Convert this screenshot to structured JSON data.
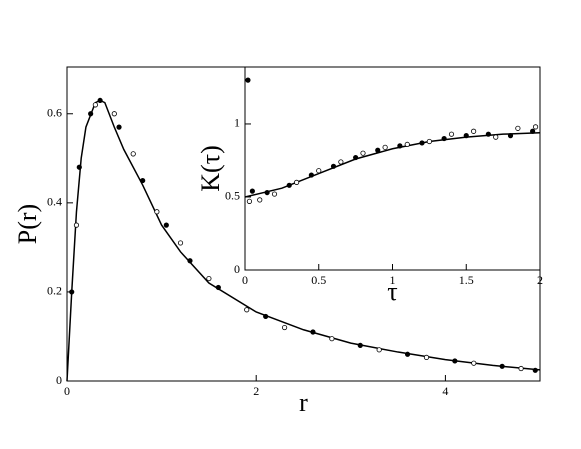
{
  "chart_data": [
    {
      "type": "line",
      "xlabel": "r",
      "ylabel": "P(r)",
      "xlim": [
        0,
        5
      ],
      "ylim": [
        0,
        0.705
      ],
      "xticks": [
        0,
        2,
        4
      ],
      "yticks": [
        0,
        0.2,
        0.4,
        0.6
      ],
      "series": [
        {
          "marker": "none",
          "color": "#000000",
          "x": [
            0,
            0.05,
            0.1,
            0.15,
            0.2,
            0.3,
            0.35,
            0.4,
            0.5,
            0.6,
            0.8,
            1,
            1.2,
            1.5,
            2,
            2.5,
            3,
            3.5,
            4,
            4.5,
            5
          ],
          "values": [
            0,
            0.2,
            0.38,
            0.5,
            0.57,
            0.625,
            0.63,
            0.625,
            0.57,
            0.52,
            0.44,
            0.35,
            0.29,
            0.22,
            0.155,
            0.115,
            0.085,
            0.065,
            0.048,
            0.035,
            0.025
          ]
        },
        {
          "marker": "filled",
          "color": "#000000",
          "x": [
            0.05,
            0.13,
            0.25,
            0.35,
            0.55,
            0.8,
            1.05,
            1.3,
            1.6,
            2.1,
            2.6,
            3.1,
            3.6,
            4.1,
            4.6,
            4.95
          ],
          "values": [
            0.2,
            0.48,
            0.6,
            0.63,
            0.57,
            0.45,
            0.35,
            0.27,
            0.21,
            0.145,
            0.11,
            0.08,
            0.06,
            0.045,
            0.033,
            0.024
          ]
        },
        {
          "marker": "open",
          "color": "#000000",
          "x": [
            0.1,
            0.3,
            0.5,
            0.7,
            0.95,
            1.2,
            1.5,
            1.9,
            2.3,
            2.8,
            3.3,
            3.8,
            4.3,
            4.8
          ],
          "values": [
            0.35,
            0.62,
            0.6,
            0.51,
            0.38,
            0.31,
            0.23,
            0.16,
            0.12,
            0.095,
            0.07,
            0.053,
            0.04,
            0.028
          ]
        }
      ]
    },
    {
      "type": "line",
      "xlabel": "τ",
      "ylabel": "K(τ)",
      "xlim": [
        0,
        2
      ],
      "ylim": [
        0,
        1.39
      ],
      "xticks": [
        0,
        0.5,
        1,
        1.5,
        2
      ],
      "yticks": [
        0,
        0.5,
        1
      ],
      "series": [
        {
          "marker": "none",
          "color": "#000000",
          "x": [
            0,
            0.25,
            0.5,
            0.75,
            1,
            1.25,
            1.5,
            1.75,
            2
          ],
          "values": [
            0.5,
            0.56,
            0.66,
            0.76,
            0.83,
            0.88,
            0.91,
            0.93,
            0.94
          ]
        },
        {
          "marker": "filled",
          "color": "#000000",
          "x": [
            0.02,
            0.05,
            0.15,
            0.3,
            0.45,
            0.6,
            0.75,
            0.9,
            1.05,
            1.2,
            1.35,
            1.5,
            1.65,
            1.8,
            1.95
          ],
          "values": [
            1.3,
            0.54,
            0.53,
            0.58,
            0.65,
            0.71,
            0.77,
            0.82,
            0.85,
            0.87,
            0.9,
            0.92,
            0.93,
            0.92,
            0.95
          ]
        },
        {
          "marker": "open",
          "color": "#000000",
          "x": [
            0.03,
            0.1,
            0.2,
            0.35,
            0.5,
            0.65,
            0.8,
            0.95,
            1.1,
            1.25,
            1.4,
            1.55,
            1.7,
            1.85,
            1.97
          ],
          "values": [
            0.47,
            0.48,
            0.52,
            0.6,
            0.68,
            0.74,
            0.8,
            0.84,
            0.86,
            0.88,
            0.93,
            0.95,
            0.91,
            0.97,
            0.98
          ]
        }
      ]
    }
  ]
}
